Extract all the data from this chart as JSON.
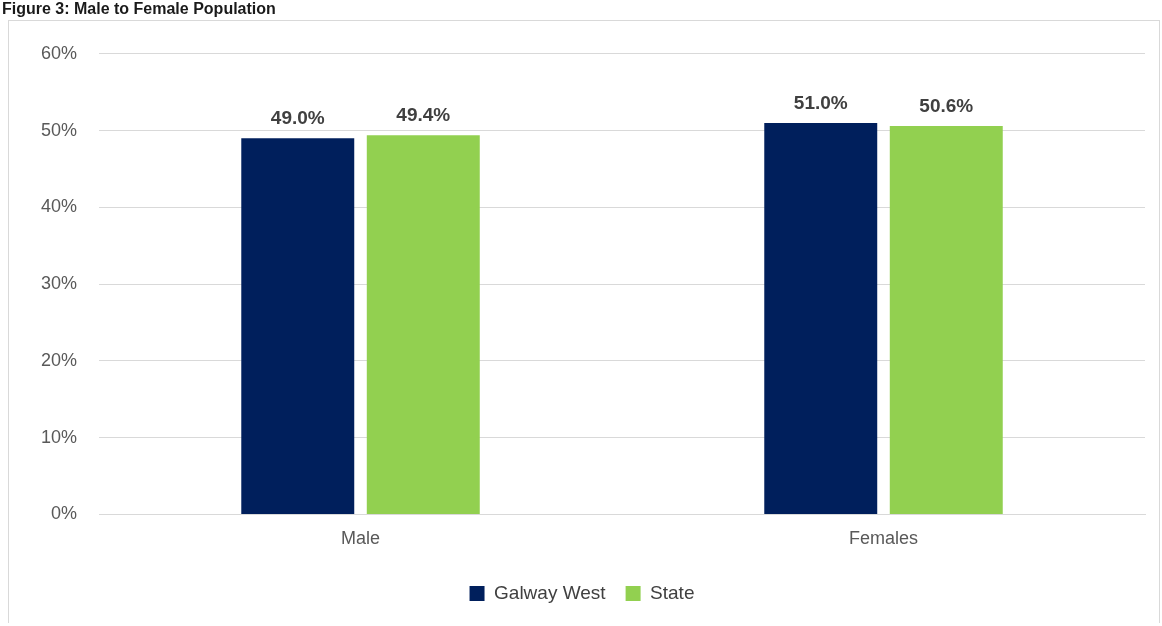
{
  "chart_data": {
    "type": "bar",
    "title": "Figure 3: Male to Female Population",
    "categories": [
      "Male",
      "Females"
    ],
    "series": [
      {
        "name": "Galway West",
        "color": "#001f5c",
        "values": [
          49.0,
          51.0
        ],
        "value_labels": [
          "49.0%",
          "51.0%"
        ]
      },
      {
        "name": "State",
        "color": "#92d050",
        "values": [
          49.4,
          50.6
        ],
        "value_labels": [
          "49.4%",
          "50.6%"
        ]
      }
    ],
    "ylim": [
      0,
      60
    ],
    "yticks": [
      {
        "value": 0,
        "label": "0%"
      },
      {
        "value": 10,
        "label": "10%"
      },
      {
        "value": 20,
        "label": "20%"
      },
      {
        "value": 30,
        "label": "30%"
      },
      {
        "value": 40,
        "label": "40%"
      },
      {
        "value": 50,
        "label": "50%"
      },
      {
        "value": 60,
        "label": "60%"
      }
    ],
    "grid": "y",
    "legend": "bottom"
  }
}
